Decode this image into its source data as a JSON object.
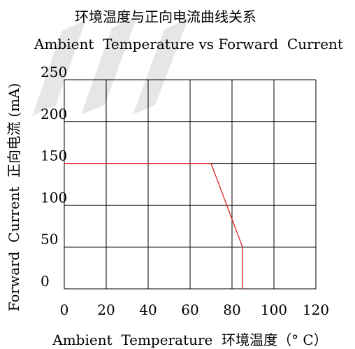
{
  "chart_data": {
    "type": "line",
    "title": "环境温度与正向电流曲线关系",
    "subtitle": "Ambient  Temperature vs Forward  Current",
    "xlabel": "Ambient  Temperature  环境温度（° C）",
    "ylabel": "Forward  Current  正向电流 (mA)",
    "xlim": [
      0,
      120
    ],
    "ylim": [
      0,
      250
    ],
    "xticks": [
      0,
      20,
      40,
      60,
      80,
      100,
      120
    ],
    "yticks": [
      0,
      50,
      100,
      150,
      200,
      250
    ],
    "grid": true,
    "series": [
      {
        "color": "#e0201c",
        "points": [
          [
            0,
            150
          ],
          [
            70,
            150
          ],
          [
            85,
            50
          ],
          [
            85,
            0
          ]
        ]
      }
    ]
  },
  "colors": {
    "grid": "#000000",
    "line": "#e0201c",
    "watermark": "#e4e4e4"
  }
}
